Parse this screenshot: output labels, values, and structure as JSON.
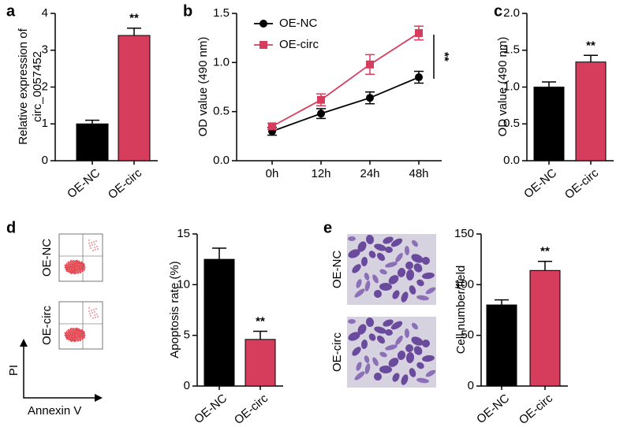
{
  "chart_data": [
    {
      "type": "bar",
      "letter": "a",
      "y_label": [
        "Relative expression of",
        "circ_0057452"
      ],
      "categories": [
        "OE-NC",
        "OE-circ"
      ],
      "values": [
        1.0,
        3.4
      ],
      "errors": [
        0.1,
        0.2
      ],
      "colors": [
        "#000000",
        "#d63c5c"
      ],
      "ylim": [
        0,
        4
      ],
      "yticks": [
        0,
        1,
        2,
        3,
        4
      ],
      "annotation": "**"
    },
    {
      "type": "line",
      "letter": "b",
      "y_label": [
        "OD value (490 nm)"
      ],
      "categories": [
        "0h",
        "12h",
        "24h",
        "48h"
      ],
      "series": [
        {
          "name": "OE-NC",
          "color": "#000000",
          "marker": "circle",
          "values": [
            0.3,
            0.48,
            0.64,
            0.85
          ],
          "errors": [
            0.04,
            0.05,
            0.06,
            0.06
          ]
        },
        {
          "name": "OE-circ",
          "color": "#d63c5c",
          "marker": "square",
          "values": [
            0.35,
            0.62,
            0.98,
            1.3
          ],
          "errors": [
            0.03,
            0.06,
            0.1,
            0.07
          ]
        }
      ],
      "ylim": [
        0,
        1.5
      ],
      "yticks": [
        {
          "value": 0,
          "label": "0.0"
        },
        {
          "value": 0.5,
          "label": "0.5"
        },
        {
          "value": 1,
          "label": "1.0"
        },
        {
          "value": 1.5,
          "label": "1.5"
        }
      ],
      "annotation": "**"
    },
    {
      "type": "bar",
      "letter": "c",
      "y_label": [
        "OD value (490 nm)"
      ],
      "categories": [
        "OE-NC",
        "OE-circ"
      ],
      "values": [
        1.0,
        1.34
      ],
      "errors": [
        0.07,
        0.09
      ],
      "colors": [
        "#000000",
        "#d63c5c"
      ],
      "ylim": [
        0,
        2
      ],
      "yticks": [
        {
          "value": 0,
          "label": "0.0"
        },
        {
          "value": 0.5,
          "label": "0.5"
        },
        {
          "value": 1,
          "label": "1.0"
        },
        {
          "value": 1.5,
          "label": "1.5"
        },
        {
          "value": 2,
          "label": "2.0"
        }
      ],
      "annotation": "**"
    },
    {
      "type": "bar",
      "letter": "d",
      "image_labels": [
        "OE-NC",
        "OE-circ"
      ],
      "image_x_label": "Annexin V",
      "image_y_label": "PI",
      "y_label": [
        "Apoptosis rate (%)"
      ],
      "categories": [
        "OE-NC",
        "OE-circ"
      ],
      "values": [
        12.5,
        4.6
      ],
      "errors": [
        1.1,
        0.8
      ],
      "colors": [
        "#000000",
        "#d63c5c"
      ],
      "ylim": [
        0,
        15
      ],
      "yticks": [
        0,
        5,
        10,
        15
      ],
      "annotation": "**"
    },
    {
      "type": "bar",
      "letter": "e",
      "image_labels": [
        "OE-NC",
        "OE-circ"
      ],
      "y_label": [
        "Cell number/field"
      ],
      "categories": [
        "OE-NC",
        "OE-circ"
      ],
      "values": [
        80,
        114
      ],
      "errors": [
        5,
        9
      ],
      "colors": [
        "#000000",
        "#d63c5c"
      ],
      "ylim": [
        0,
        150
      ],
      "yticks": [
        0,
        50,
        100,
        150
      ],
      "annotation": "**"
    }
  ]
}
